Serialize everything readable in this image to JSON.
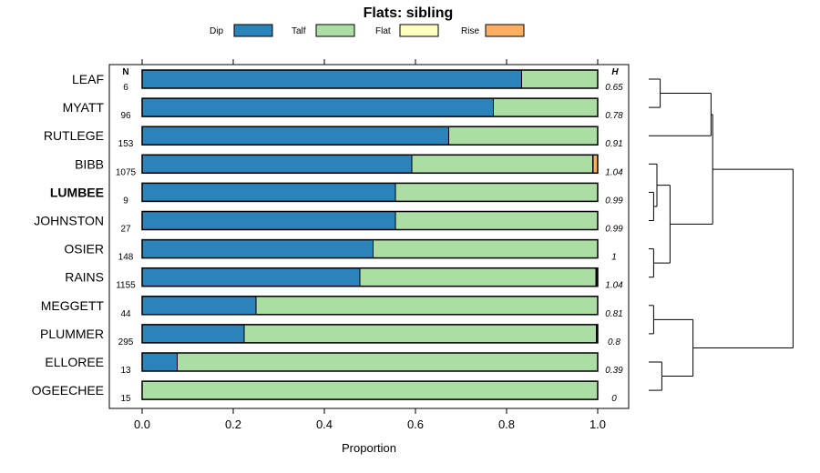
{
  "chart_data": {
    "type": "bar",
    "orientation": "horizontal",
    "stacked": true,
    "title": "Flats: sibling",
    "xlabel": "Proportion",
    "xlim": [
      0,
      1
    ],
    "xticks": [
      "0.0",
      "0.2",
      "0.4",
      "0.6",
      "0.8",
      "1.0"
    ],
    "n_header": "N",
    "h_header": "H",
    "legend": [
      {
        "name": "Dip",
        "color": "#2b83ba"
      },
      {
        "name": "Talf",
        "color": "#abdda4"
      },
      {
        "name": "Flat",
        "color": "#ffffbf"
      },
      {
        "name": "Rise",
        "color": "#fdae61"
      }
    ],
    "categories": [
      "LEAF",
      "MYATT",
      "RUTLEGE",
      "BIBB",
      "LUMBEE",
      "JOHNSTON",
      "OSIER",
      "RAINS",
      "MEGGETT",
      "PLUMMER",
      "ELLOREE",
      "OGEECHEE"
    ],
    "highlight": "LUMBEE",
    "n": [
      "6",
      "96",
      "153",
      "1075",
      "9",
      "27",
      "148",
      "1155",
      "44",
      "295",
      "13",
      "15"
    ],
    "h": [
      "0.65",
      "0.78",
      "0.91",
      "1.04",
      "0.99",
      "0.99",
      "1",
      "1.04",
      "0.81",
      "0.8",
      "0.39",
      "0"
    ],
    "series": [
      {
        "name": "Dip",
        "values": [
          0.833,
          0.771,
          0.673,
          0.592,
          0.556,
          0.556,
          0.507,
          0.478,
          0.25,
          0.224,
          0.077,
          0.0
        ]
      },
      {
        "name": "Talf",
        "values": [
          0.167,
          0.229,
          0.327,
          0.397,
          0.444,
          0.444,
          0.493,
          0.518,
          0.75,
          0.773,
          0.923,
          1.0
        ]
      },
      {
        "name": "Flat",
        "values": [
          0,
          0,
          0,
          0.001,
          0,
          0,
          0,
          0.003,
          0,
          0.003,
          0,
          0
        ]
      },
      {
        "name": "Rise",
        "values": [
          0,
          0,
          0,
          0.01,
          0,
          0,
          0,
          0.001,
          0,
          0,
          0,
          0
        ]
      }
    ],
    "dendrogram": {
      "leaves": [
        "LEAF",
        "MYATT",
        "RUTLEGE",
        "BIBB",
        "LUMBEE",
        "JOHNSTON",
        "OSIER",
        "RAINS",
        "MEGGETT",
        "PLUMMER",
        "ELLOREE",
        "OGEECHEE"
      ],
      "merges": [
        {
          "a": "LEAF",
          "b": "MYATT",
          "height": 0.07
        },
        {
          "a": "LUMBEE",
          "b": "JOHNSTON",
          "height": 0.03
        },
        {
          "a": "OSIER",
          "b": "RAINS",
          "height": 0.03
        },
        {
          "a": "MEGGETT",
          "b": "PLUMMER",
          "height": 0.03
        },
        {
          "a": "ELLOREE",
          "b": "OGEECHEE",
          "height": 0.08
        },
        {
          "a": "LEAF+MYATT",
          "b": "RUTLEGE",
          "height": 0.38
        },
        {
          "a": "BIBB",
          "b": "LUMBEE+JOHNSTON",
          "height": 0.05
        },
        {
          "a": "BIBB+LUMBEE+JOHNSTON",
          "b": "OSIER+RAINS",
          "height": 0.13
        },
        {
          "a": "MEGGETT+PLUMMER",
          "b": "ELLOREE+OGEECHEE",
          "height": 0.27
        },
        {
          "a": "LEAF+MYATT+RUTLEGE",
          "b": "BIBB+LUMBEE+JOHNSTON+OSIER+RAINS",
          "height": 0.39
        },
        {
          "a": "LEAF+...+RAINS",
          "b": "MEGGETT+...+OGEECHEE",
          "height": 0.88
        }
      ]
    }
  }
}
